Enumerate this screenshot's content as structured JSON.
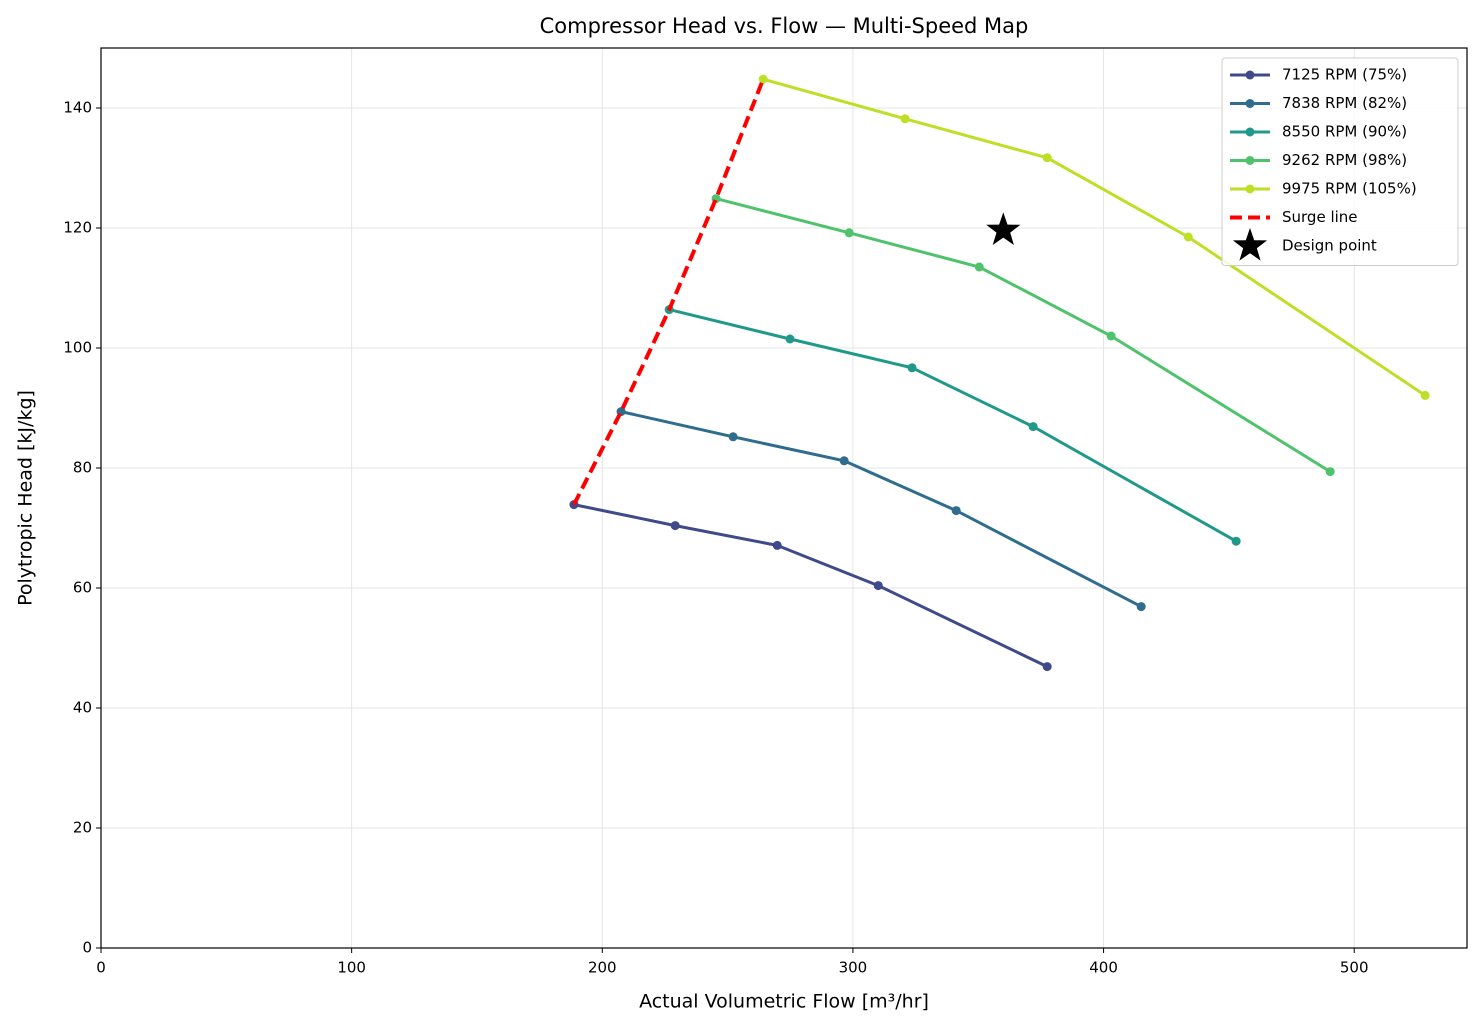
{
  "chart_data": {
    "type": "line",
    "title": "Compressor Head vs. Flow — Multi-Speed Map",
    "x_label": "Actual Volumetric Flow [m³/hr]",
    "y_label": "Polytropic Head [kJ/kg]",
    "xlim": [
      0,
      545
    ],
    "ylim": [
      0,
      150
    ],
    "xticks": [
      0,
      100,
      200,
      300,
      400,
      500
    ],
    "yticks": [
      0,
      20,
      40,
      60,
      80,
      100,
      120,
      140
    ],
    "grid": true,
    "legend": "upper right",
    "series": [
      {
        "name": "7125 RPM (75%)",
        "color": "#3e4a89",
        "x": [
          188.7,
          229.1,
          269.8,
          310.1,
          377.5
        ],
        "values": [
          73.9,
          70.4,
          67.1,
          60.4,
          46.9
        ]
      },
      {
        "name": "7838 RPM (82%)",
        "color": "#2f6c8e",
        "x": [
          207.5,
          252.2,
          296.5,
          341.2,
          415.0
        ],
        "values": [
          89.4,
          85.2,
          81.2,
          72.9,
          56.9
        ]
      },
      {
        "name": "8550 RPM (90%)",
        "color": "#21998a",
        "x": [
          226.7,
          274.9,
          323.6,
          371.9,
          452.9
        ],
        "values": [
          106.4,
          101.5,
          96.7,
          86.9,
          67.8
        ]
      },
      {
        "name": "9262 RPM (98%)",
        "color": "#4ec36b",
        "x": [
          245.4,
          298.5,
          350.4,
          403.0,
          490.4
        ],
        "values": [
          124.9,
          119.2,
          113.5,
          102.0,
          79.4
        ]
      },
      {
        "name": "9975 RPM (105%)",
        "color": "#bddf26",
        "x": [
          264.2,
          320.8,
          377.5,
          433.8,
          528.3
        ],
        "values": [
          144.8,
          138.2,
          131.7,
          118.5,
          92.1
        ]
      },
      {
        "name": "Surge line",
        "color": "#ff0000",
        "dashed": true,
        "markers": false,
        "x": [
          188.7,
          207.5,
          226.7,
          245.4,
          264.2
        ],
        "values": [
          73.9,
          89.4,
          106.4,
          124.9,
          144.8
        ]
      }
    ],
    "design_point": {
      "name": "Design point",
      "color": "#000000",
      "x": 360,
      "y": 119.6
    }
  }
}
